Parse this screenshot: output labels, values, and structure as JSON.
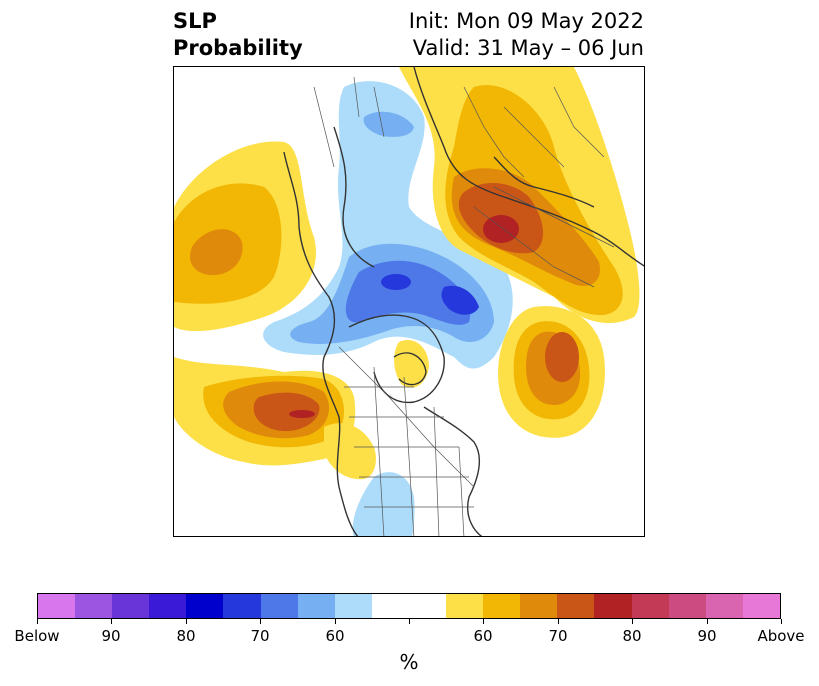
{
  "title": {
    "left_line1": "SLP",
    "left_line2": "Probability",
    "right_line1": "Init: Mon 09 May 2022",
    "right_line2": "Valid: 31 May – 06 Jun"
  },
  "map": {
    "projection": "north-polar-stereographic",
    "field": "SLP probability",
    "features": [
      "coastlines",
      "country-borders",
      "us-state-borders"
    ]
  },
  "colorbar": {
    "colors": [
      "#d876ee",
      "#9b55e0",
      "#6a35d8",
      "#3a1ad6",
      "#0000cc",
      "#2438dc",
      "#4e78e8",
      "#76b0f2",
      "#acdcfa",
      "#ffffff",
      "#ffffff",
      "#fde047",
      "#f2b705",
      "#e08a0b",
      "#c95517",
      "#b02224",
      "#c23a55",
      "#cc4b80",
      "#d964b0",
      "#e878d8"
    ],
    "tick_labels": [
      "Below",
      "90",
      "80",
      "70",
      "60",
      "",
      "60",
      "70",
      "80",
      "90",
      "Above"
    ],
    "unit": "%"
  }
}
